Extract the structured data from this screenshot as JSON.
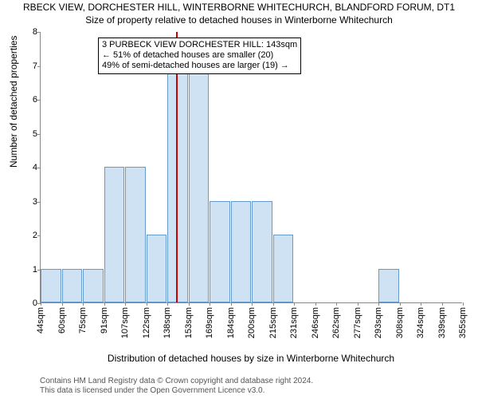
{
  "title_main": "RBECK VIEW, DORCHESTER HILL, WINTERBORNE WHITECHURCH, BLANDFORD FORUM, DT1",
  "title_sub": "Size of property relative to detached houses in Winterborne Whitechurch",
  "chart": {
    "type": "histogram",
    "ylabel": "Number of detached properties",
    "xlabel": "Distribution of detached houses by size in Winterborne Whitechurch",
    "ylim": [
      0,
      8
    ],
    "yticks": [
      0,
      1,
      2,
      3,
      4,
      5,
      6,
      7,
      8
    ],
    "xticks": [
      "44sqm",
      "60sqm",
      "75sqm",
      "91sqm",
      "107sqm",
      "122sqm",
      "138sqm",
      "153sqm",
      "169sqm",
      "184sqm",
      "200sqm",
      "215sqm",
      "231sqm",
      "246sqm",
      "262sqm",
      "277sqm",
      "293sqm",
      "308sqm",
      "324sqm",
      "339sqm",
      "355sqm"
    ],
    "bars": [
      1,
      1,
      1,
      4,
      4,
      2,
      7,
      7,
      3,
      3,
      3,
      2,
      0,
      0,
      0,
      0,
      1,
      0,
      0,
      0
    ],
    "bar_fill": "#cfe2f3",
    "bar_stroke": "#6699cc",
    "vline_index": 6.4,
    "vline_color": "#cc0000",
    "background": "#ffffff"
  },
  "annotation": {
    "line1": "3 PURBECK VIEW DORCHESTER HILL: 143sqm",
    "line2": "← 51% of detached houses are smaller (20)",
    "line3": "49% of semi-detached houses are larger (19) →"
  },
  "footer": {
    "line1": "Contains HM Land Registry data © Crown copyright and database right 2024.",
    "line2": "This data is licensed under the Open Government Licence v3.0."
  }
}
